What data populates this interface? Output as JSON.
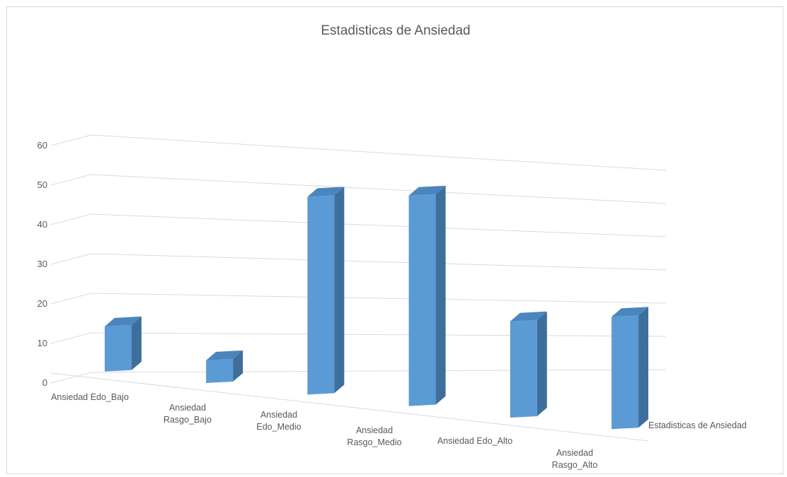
{
  "chart_data": {
    "type": "bar",
    "title": "Estadisticas de Ansiedad",
    "categories": [
      [
        "Ansiedad Edo_Bajo"
      ],
      [
        "Ansiedad",
        "Rasgo_Bajo"
      ],
      [
        "Ansiedad",
        "Edo_Medio"
      ],
      [
        "Ansiedad",
        "Rasgo_Medio"
      ],
      [
        "Ansiedad Edo_Alto"
      ],
      [
        "Ansiedad",
        "Rasgo_Alto"
      ]
    ],
    "series": [
      {
        "name": "Estadisticas de Ansiedad",
        "values": [
          12,
          6,
          52,
          55,
          25,
          29
        ]
      }
    ],
    "yticks": [
      "0",
      "10",
      "20",
      "30",
      "40",
      "50",
      "60"
    ],
    "ylim": [
      0,
      60
    ],
    "grid": true,
    "colors": {
      "front": "#5b9bd5",
      "side": "#3e6e9c",
      "top": "#4a85bd",
      "grid": "#d9d9d9",
      "text": "#595959"
    }
  }
}
